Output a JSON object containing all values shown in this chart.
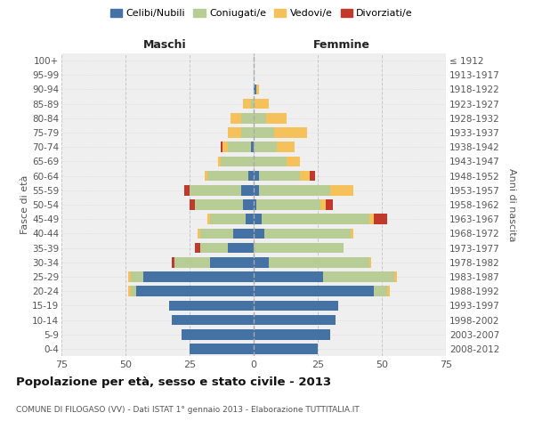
{
  "age_groups": [
    "0-4",
    "5-9",
    "10-14",
    "15-19",
    "20-24",
    "25-29",
    "30-34",
    "35-39",
    "40-44",
    "45-49",
    "50-54",
    "55-59",
    "60-64",
    "65-69",
    "70-74",
    "75-79",
    "80-84",
    "85-89",
    "90-94",
    "95-99",
    "100+"
  ],
  "birth_years": [
    "2008-2012",
    "2003-2007",
    "1998-2002",
    "1993-1997",
    "1988-1992",
    "1983-1987",
    "1978-1982",
    "1973-1977",
    "1968-1972",
    "1963-1967",
    "1958-1962",
    "1953-1957",
    "1948-1952",
    "1943-1947",
    "1938-1942",
    "1933-1937",
    "1928-1932",
    "1923-1927",
    "1918-1922",
    "1913-1917",
    "≤ 1912"
  ],
  "maschi_celibi": [
    25,
    28,
    32,
    33,
    46,
    43,
    17,
    10,
    8,
    3,
    4,
    5,
    2,
    0,
    1,
    0,
    0,
    0,
    0,
    0,
    0
  ],
  "maschi_coniugati": [
    0,
    0,
    0,
    0,
    2,
    5,
    14,
    11,
    13,
    14,
    19,
    20,
    16,
    13,
    9,
    5,
    5,
    1,
    0,
    0,
    0
  ],
  "maschi_vedovi": [
    0,
    0,
    0,
    0,
    1,
    1,
    0,
    0,
    1,
    1,
    0,
    0,
    1,
    1,
    2,
    5,
    4,
    3,
    0,
    0,
    0
  ],
  "maschi_divorziati": [
    0,
    0,
    0,
    0,
    0,
    0,
    1,
    2,
    0,
    0,
    2,
    2,
    0,
    0,
    1,
    0,
    0,
    0,
    0,
    0,
    0
  ],
  "femmine_nubili": [
    25,
    30,
    32,
    33,
    47,
    27,
    6,
    0,
    4,
    3,
    1,
    2,
    2,
    0,
    0,
    0,
    0,
    0,
    1,
    0,
    0
  ],
  "femmine_coniugate": [
    0,
    0,
    0,
    0,
    5,
    28,
    39,
    35,
    34,
    42,
    25,
    28,
    16,
    13,
    9,
    8,
    5,
    0,
    0,
    0,
    0
  ],
  "femmine_vedove": [
    0,
    0,
    0,
    0,
    1,
    1,
    1,
    0,
    1,
    2,
    2,
    9,
    4,
    5,
    7,
    13,
    8,
    6,
    1,
    0,
    0
  ],
  "femmine_divorziate": [
    0,
    0,
    0,
    0,
    0,
    0,
    0,
    0,
    0,
    5,
    3,
    0,
    2,
    0,
    0,
    0,
    0,
    0,
    0,
    0,
    0
  ],
  "color_celibi": "#4472a4",
  "color_coniugati": "#b8cd96",
  "color_vedovi": "#f4c15a",
  "color_divorziati": "#c0392b",
  "xlim": 75,
  "title": "Popolazione per età, sesso e stato civile - 2013",
  "subtitle": "COMUNE DI FILOGASO (VV) - Dati ISTAT 1° gennaio 2013 - Elaborazione TUTTITALIA.IT",
  "ylabel_left": "Fasce di età",
  "ylabel_right": "Anni di nascita",
  "label_maschi": "Maschi",
  "label_femmine": "Femmine",
  "legend_labels": [
    "Celibi/Nubili",
    "Coniugati/e",
    "Vedovi/e",
    "Divorziati/e"
  ],
  "bg_color": "#ffffff",
  "plot_bg_color": "#efefef"
}
